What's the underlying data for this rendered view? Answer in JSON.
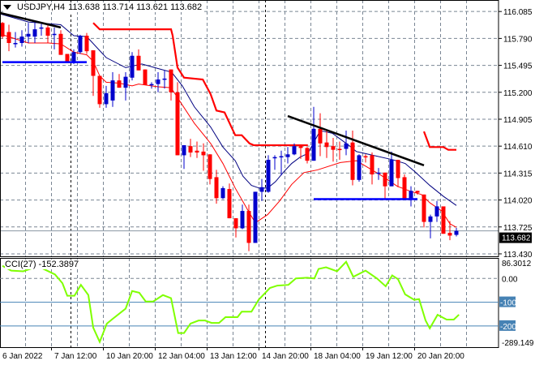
{
  "header": {
    "symbol": "USDJPY,H4",
    "ohlc": "113.638 113.714 113.621 113.682"
  },
  "chart_data": {
    "type": "candlestick",
    "symbol": "USDJPY",
    "timeframe": "H4",
    "price_axis": {
      "ticks": [
        "116.085",
        "115.790",
        "115.495",
        "115.200",
        "114.905",
        "114.610",
        "114.315",
        "114.020",
        "113.725",
        "113.430"
      ],
      "range": [
        113.403,
        116.211
      ]
    },
    "current_price": {
      "value": 113.682,
      "label": "113.682"
    },
    "colors": {
      "bull": "#0000cc",
      "bear": "#ff0000",
      "ma_fast": "#ff0000",
      "ma_slow": "#000080",
      "stop": "#ff0000",
      "trend": "#000000",
      "support": "#0000ff",
      "cci": "#7fff00",
      "grid": "#7a8694",
      "level": "#4682b4"
    },
    "x_labels": [
      {
        "label": "6 Jan 2022",
        "index": 0
      },
      {
        "label": "7 Jan 12:00",
        "index": 8
      },
      {
        "label": "10 Jan 20:00",
        "index": 16
      },
      {
        "label": "12 Jan 04:00",
        "index": 24
      },
      {
        "label": "13 Jan 12:00",
        "index": 32
      },
      {
        "label": "14 Jan 20:00",
        "index": 40
      },
      {
        "label": "18 Jan 04:00",
        "index": 48
      },
      {
        "label": "19 Jan 12:00",
        "index": 56
      },
      {
        "label": "20 Jan 20:00",
        "index": 64
      }
    ],
    "candles": [
      [
        115.96,
        115.97,
        115.79,
        115.81
      ],
      [
        115.86,
        115.94,
        115.65,
        115.74
      ],
      [
        115.73,
        115.86,
        115.69,
        115.74
      ],
      [
        115.74,
        115.88,
        115.7,
        115.81
      ],
      [
        115.81,
        115.96,
        115.74,
        115.84
      ],
      [
        115.81,
        115.96,
        115.74,
        115.89
      ],
      [
        115.9,
        115.95,
        115.82,
        115.91
      ],
      [
        115.91,
        115.94,
        115.74,
        115.82
      ],
      [
        115.83,
        115.91,
        115.67,
        115.84
      ],
      [
        115.84,
        115.88,
        115.61,
        115.61
      ],
      [
        115.62,
        115.62,
        115.53,
        115.54
      ],
      [
        115.52,
        115.67,
        115.51,
        115.64
      ],
      [
        115.64,
        115.83,
        115.62,
        115.82
      ],
      [
        115.82,
        115.85,
        115.62,
        115.65
      ],
      [
        115.66,
        115.66,
        115.16,
        115.38
      ],
      [
        115.38,
        115.38,
        115.03,
        115.07
      ],
      [
        115.07,
        115.27,
        115.03,
        115.19
      ],
      [
        115.11,
        115.42,
        115.04,
        115.33
      ],
      [
        115.33,
        115.4,
        115.25,
        115.25
      ],
      [
        115.25,
        115.42,
        115.11,
        115.37
      ],
      [
        115.36,
        115.64,
        115.33,
        115.6
      ],
      [
        115.6,
        115.67,
        115.44,
        115.44
      ],
      [
        115.45,
        115.45,
        115.28,
        115.28
      ],
      [
        115.28,
        115.31,
        115.24,
        115.29
      ],
      [
        115.29,
        115.42,
        115.2,
        115.34
      ],
      [
        115.34,
        115.44,
        115.24,
        115.35
      ],
      [
        115.45,
        115.45,
        115.11,
        115.2
      ],
      [
        115.2,
        115.31,
        114.51,
        114.51
      ],
      [
        114.51,
        114.62,
        114.36,
        114.62
      ],
      [
        114.61,
        114.69,
        114.49,
        114.54
      ],
      [
        114.56,
        114.66,
        114.48,
        114.54
      ],
      [
        114.55,
        114.64,
        114.34,
        114.51
      ],
      [
        114.52,
        114.52,
        114.19,
        114.25
      ],
      [
        114.27,
        114.35,
        113.98,
        114.04
      ],
      [
        114.04,
        114.17,
        114.03,
        114.15
      ],
      [
        114.14,
        114.2,
        113.82,
        113.82
      ],
      [
        113.82,
        113.82,
        113.61,
        113.71
      ],
      [
        113.71,
        113.97,
        113.7,
        113.9
      ],
      [
        113.9,
        113.97,
        113.46,
        113.55
      ],
      [
        113.55,
        114.11,
        113.55,
        114.11
      ],
      [
        114.11,
        114.25,
        114.01,
        114.16
      ],
      [
        114.11,
        114.51,
        114.1,
        114.46
      ],
      [
        114.48,
        114.51,
        114.35,
        114.49
      ],
      [
        114.49,
        114.56,
        114.29,
        114.5
      ],
      [
        114.49,
        114.6,
        114.42,
        114.52
      ],
      [
        114.52,
        114.64,
        114.51,
        114.61
      ],
      [
        114.61,
        114.63,
        114.47,
        114.59
      ],
      [
        114.59,
        114.6,
        114.42,
        114.45
      ],
      [
        114.45,
        115.04,
        114.45,
        114.8
      ],
      [
        114.8,
        114.97,
        114.5,
        114.64
      ],
      [
        114.65,
        114.79,
        114.48,
        114.6
      ],
      [
        114.61,
        114.7,
        114.44,
        114.57
      ],
      [
        114.58,
        114.66,
        114.46,
        114.57
      ],
      [
        114.58,
        114.78,
        114.51,
        114.64
      ],
      [
        114.65,
        114.78,
        114.18,
        114.24
      ],
      [
        114.24,
        114.52,
        114.22,
        114.51
      ],
      [
        114.5,
        114.52,
        114.43,
        114.49
      ],
      [
        114.51,
        114.54,
        114.19,
        114.3
      ],
      [
        114.31,
        114.37,
        114.24,
        114.32
      ],
      [
        114.32,
        114.32,
        114.02,
        114.17
      ],
      [
        114.17,
        114.55,
        114.17,
        114.46
      ],
      [
        114.46,
        114.46,
        114.16,
        114.26
      ],
      [
        114.27,
        114.3,
        114.03,
        114.03
      ],
      [
        114.03,
        114.17,
        113.95,
        114.12
      ],
      [
        114.12,
        114.12,
        114.08,
        114.1
      ],
      [
        114.08,
        114.08,
        113.72,
        113.78
      ],
      [
        113.78,
        113.86,
        113.6,
        113.84
      ],
      [
        113.84,
        114.01,
        113.78,
        113.95
      ],
      [
        113.95,
        113.95,
        113.65,
        113.65
      ],
      [
        113.66,
        113.79,
        113.58,
        113.63
      ],
      [
        113.638,
        113.714,
        113.621,
        113.682
      ]
    ],
    "ma_slow": [
      [
        -0.4,
        116.06
      ],
      [
        4,
        115.97
      ],
      [
        9,
        115.94
      ],
      [
        11,
        115.82
      ],
      [
        13,
        115.81
      ],
      [
        16,
        115.58
      ],
      [
        19,
        115.47
      ],
      [
        21.5,
        115.51
      ],
      [
        24,
        115.46
      ],
      [
        26.1,
        115.42
      ],
      [
        27.75,
        115.27
      ],
      [
        29.6,
        115.04
      ],
      [
        32.1,
        114.82
      ],
      [
        34,
        114.6
      ],
      [
        35.9,
        114.45
      ],
      [
        37.1,
        114.28
      ],
      [
        38.4,
        114.18
      ],
      [
        39.6,
        114.15
      ],
      [
        40.9,
        114.15
      ],
      [
        42.1,
        114.22
      ],
      [
        43.4,
        114.33
      ],
      [
        44.6,
        114.42
      ],
      [
        45.9,
        114.49
      ],
      [
        47.1,
        114.53
      ],
      [
        49,
        114.78
      ],
      [
        50.9,
        114.75
      ],
      [
        53.4,
        114.62
      ],
      [
        54.6,
        114.55
      ],
      [
        57.1,
        114.51
      ],
      [
        60.25,
        114.46
      ],
      [
        62.1,
        114.42
      ],
      [
        63.6,
        114.33
      ],
      [
        65.9,
        114.18
      ],
      [
        68,
        114.06
      ],
      [
        70,
        113.96
      ]
    ],
    "ma_fast": [
      [
        -0.4,
        115.84
      ],
      [
        4,
        115.74
      ],
      [
        7.1,
        115.74
      ],
      [
        9,
        115.73
      ],
      [
        11,
        115.64
      ],
      [
        13,
        115.61
      ],
      [
        14,
        115.54
      ],
      [
        15,
        115.38
      ],
      [
        16,
        115.31
      ],
      [
        18,
        115.3
      ],
      [
        20,
        115.27
      ],
      [
        21,
        115.29
      ],
      [
        24,
        115.26
      ],
      [
        26,
        115.25
      ],
      [
        27.1,
        115.13
      ],
      [
        29.6,
        114.86
      ],
      [
        32.1,
        114.64
      ],
      [
        34,
        114.42
      ],
      [
        35.9,
        114.15
      ],
      [
        37.75,
        113.92
      ],
      [
        39,
        113.77
      ],
      [
        40.9,
        113.86
      ],
      [
        42.75,
        114.01
      ],
      [
        44.6,
        114.19
      ],
      [
        46.5,
        114.32
      ],
      [
        48.6,
        114.35
      ],
      [
        52.1,
        114.43
      ],
      [
        54.6,
        114.45
      ],
      [
        56.5,
        114.37
      ],
      [
        58.4,
        114.29
      ],
      [
        60.9,
        114.17
      ],
      [
        62.75,
        114.12
      ],
      [
        64.6,
        114.08
      ],
      [
        65.9,
        113.99
      ],
      [
        67.75,
        113.9
      ],
      [
        69,
        113.76
      ],
      [
        70,
        113.72
      ]
    ],
    "stop_lines": [
      [
        [
          14,
          115.96
        ],
        [
          15,
          115.89
        ],
        [
          26,
          115.89
        ],
        [
          26.25,
          115.82
        ],
        [
          27,
          115.47
        ],
        [
          28,
          115.36
        ],
        [
          30.9,
          115.34
        ],
        [
          32.1,
          115.18
        ],
        [
          33,
          115.0
        ],
        [
          34.25,
          114.98
        ],
        [
          35.9,
          114.73
        ],
        [
          36.9,
          114.73
        ],
        [
          38.1,
          114.64
        ],
        [
          38.75,
          114.62
        ],
        [
          47.1,
          114.62
        ]
      ],
      [
        [
          65,
          114.77
        ],
        [
          65.9,
          114.6
        ],
        [
          68,
          114.6
        ],
        [
          68.75,
          114.57
        ],
        [
          70,
          114.57
        ]
      ]
    ],
    "trend_lines": [
      [
        [
          -0.4,
          116.07
        ],
        [
          9,
          115.91
        ]
      ],
      [
        [
          44,
          114.94
        ],
        [
          65,
          114.4
        ]
      ]
    ],
    "support_lines": [
      [
        [
          0,
          115.53
        ],
        [
          13,
          115.53
        ]
      ],
      [
        [
          48,
          114.03
        ],
        [
          64,
          114.03
        ]
      ]
    ],
    "separators": [
      11,
      41
    ],
    "cci": {
      "label": "CCI(27) -152.3897",
      "period": 27,
      "last": -152.3897,
      "axis_labels": {
        "max": "86.3012",
        "zero": "0.00",
        "l100": "-100",
        "l200": "-200",
        "min": "-289.149"
      },
      "range": [
        -289.149,
        86.3012
      ],
      "levels": [
        -100,
        -200
      ],
      "values": [
        [
          0,
          53
        ],
        [
          1.35,
          33
        ],
        [
          3.2,
          30
        ],
        [
          4.6,
          43
        ],
        [
          6.1,
          43
        ],
        [
          8.1,
          17
        ],
        [
          9.25,
          -20
        ],
        [
          10,
          -73
        ],
        [
          11.1,
          -73
        ],
        [
          12.1,
          -27
        ],
        [
          13.25,
          -70
        ],
        [
          14,
          -207
        ],
        [
          15,
          -267
        ],
        [
          16.1,
          -190
        ],
        [
          17,
          -170
        ],
        [
          19,
          -127
        ],
        [
          20,
          -53
        ],
        [
          21.1,
          -60
        ],
        [
          22.1,
          -97
        ],
        [
          23.25,
          -97
        ],
        [
          24.75,
          -70
        ],
        [
          26,
          -83
        ],
        [
          27.1,
          -230
        ],
        [
          28,
          -230
        ],
        [
          29,
          -190
        ],
        [
          30.25,
          -177
        ],
        [
          31.25,
          -177
        ],
        [
          32.25,
          -187
        ],
        [
          33.4,
          -187
        ],
        [
          34.4,
          -163
        ],
        [
          36.25,
          -163
        ],
        [
          36.9,
          -140
        ],
        [
          38.4,
          -140
        ],
        [
          39.5,
          -90
        ],
        [
          41.25,
          -40
        ],
        [
          42.4,
          -30
        ],
        [
          44.1,
          -27
        ],
        [
          45.25,
          0
        ],
        [
          47,
          3
        ],
        [
          48.1,
          0
        ],
        [
          48.75,
          40
        ],
        [
          49.9,
          47
        ],
        [
          51.6,
          30
        ],
        [
          53,
          70
        ],
        [
          54.1,
          7
        ],
        [
          56,
          33
        ],
        [
          57.75,
          0
        ],
        [
          59.1,
          -33
        ],
        [
          60.1,
          13
        ],
        [
          61,
          -3
        ],
        [
          62.1,
          -67
        ],
        [
          63.5,
          -90
        ],
        [
          64.25,
          -87
        ],
        [
          65.25,
          -177
        ],
        [
          65.9,
          -210
        ],
        [
          67.1,
          -153
        ],
        [
          68.5,
          -173
        ],
        [
          69.6,
          -173
        ],
        [
          70.4,
          -152.39
        ]
      ]
    }
  }
}
